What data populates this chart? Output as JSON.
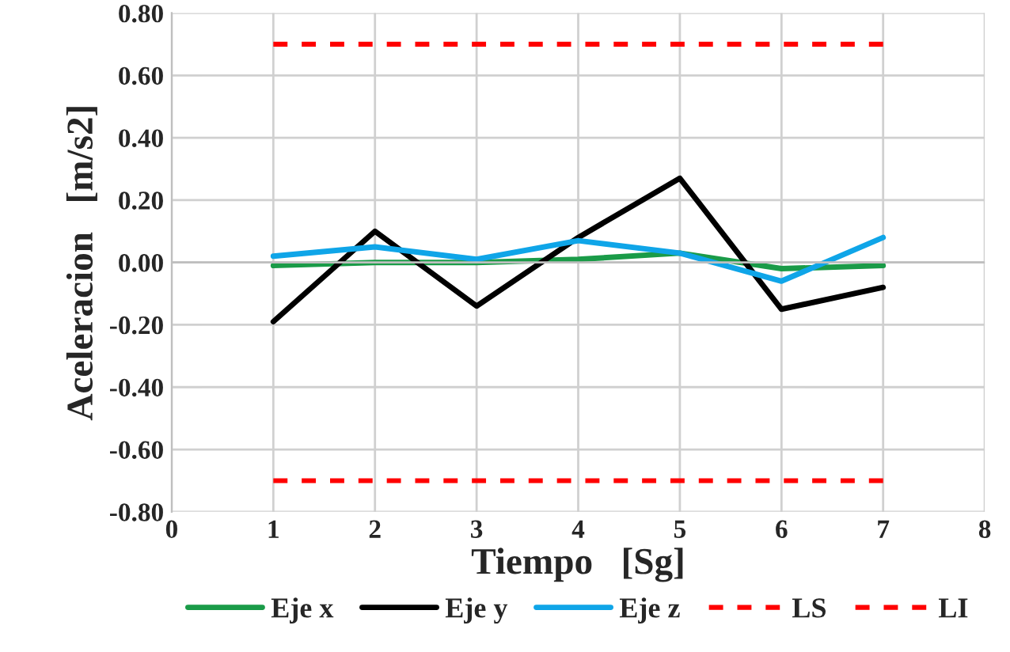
{
  "chart_data": {
    "type": "line",
    "xlabel": "Tiempo   [Sg]",
    "ylabel": "Aceleracion   [m/s2]",
    "xlim": [
      0,
      8
    ],
    "xticks": [
      0,
      1,
      2,
      3,
      4,
      5,
      6,
      7,
      8
    ],
    "ylim": [
      -0.8,
      0.8
    ],
    "yticks": [
      {
        "value": -0.8,
        "label": "-0.80"
      },
      {
        "value": -0.6,
        "label": "-0.60"
      },
      {
        "value": -0.4,
        "label": "-0.40"
      },
      {
        "value": -0.2,
        "label": "-0.20"
      },
      {
        "value": 0,
        "label": "0.00"
      },
      {
        "value": 0.2,
        "label": "0.20"
      },
      {
        "value": 0.4,
        "label": "0.40"
      },
      {
        "value": 0.6,
        "label": "0.60"
      },
      {
        "value": 0.8,
        "label": "0.80"
      }
    ],
    "grid": true,
    "legend": "bottom",
    "x": [
      1,
      2,
      3,
      4,
      5,
      6,
      7
    ],
    "series": [
      {
        "name": "Eje x",
        "color": "#1a9b48",
        "values": [
          -0.01,
          0.0,
          0.0,
          0.01,
          0.03,
          -0.02,
          -0.01
        ]
      },
      {
        "name": "Eje y",
        "color": "#000000",
        "values": [
          -0.19,
          0.1,
          -0.14,
          0.08,
          0.27,
          -0.15,
          -0.08
        ]
      },
      {
        "name": "Eje z",
        "color": "#0fa5e8",
        "values": [
          0.02,
          0.05,
          0.01,
          0.07,
          0.03,
          -0.06,
          0.08
        ]
      },
      {
        "name": "LS",
        "color": "#ff0000",
        "line_style": "dashed",
        "values": [
          0.7,
          0.7,
          0.7,
          0.7,
          0.7,
          0.7,
          0.7
        ]
      },
      {
        "name": "LI",
        "color": "#ff0000",
        "line_style": "dashed",
        "values": [
          -0.7,
          -0.7,
          -0.7,
          -0.7,
          -0.7,
          -0.7,
          -0.7
        ]
      }
    ]
  }
}
